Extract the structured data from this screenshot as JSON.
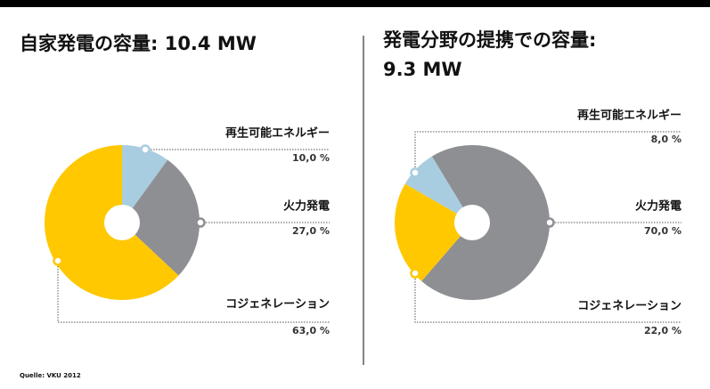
{
  "chart_data": [
    {
      "type": "pie",
      "title": "自家発電の容量:   10.4   MW",
      "categories": [
        "再生可能エネルギー",
        "火力発電",
        "コジェネレーション"
      ],
      "values": [
        10,
        27,
        63
      ],
      "value_labels": [
        "10,0 %",
        "27,0 %",
        "63,0 %"
      ],
      "colors": [
        "#a9cde0",
        "#8e8f93",
        "#ffc800"
      ]
    },
    {
      "type": "pie",
      "title": "発電分野の提携での容量:",
      "subtitle": "9.3   MW",
      "categories": [
        "再生可能エネルギー",
        "火力発電",
        "コジェネレーション"
      ],
      "values": [
        8,
        70,
        22
      ],
      "value_labels": [
        "8,0 %",
        "70,0 %",
        "22,0 %"
      ],
      "colors": [
        "#a9cde0",
        "#8e8f93",
        "#ffc800"
      ]
    }
  ],
  "source": "Quelle: VKU 2012"
}
